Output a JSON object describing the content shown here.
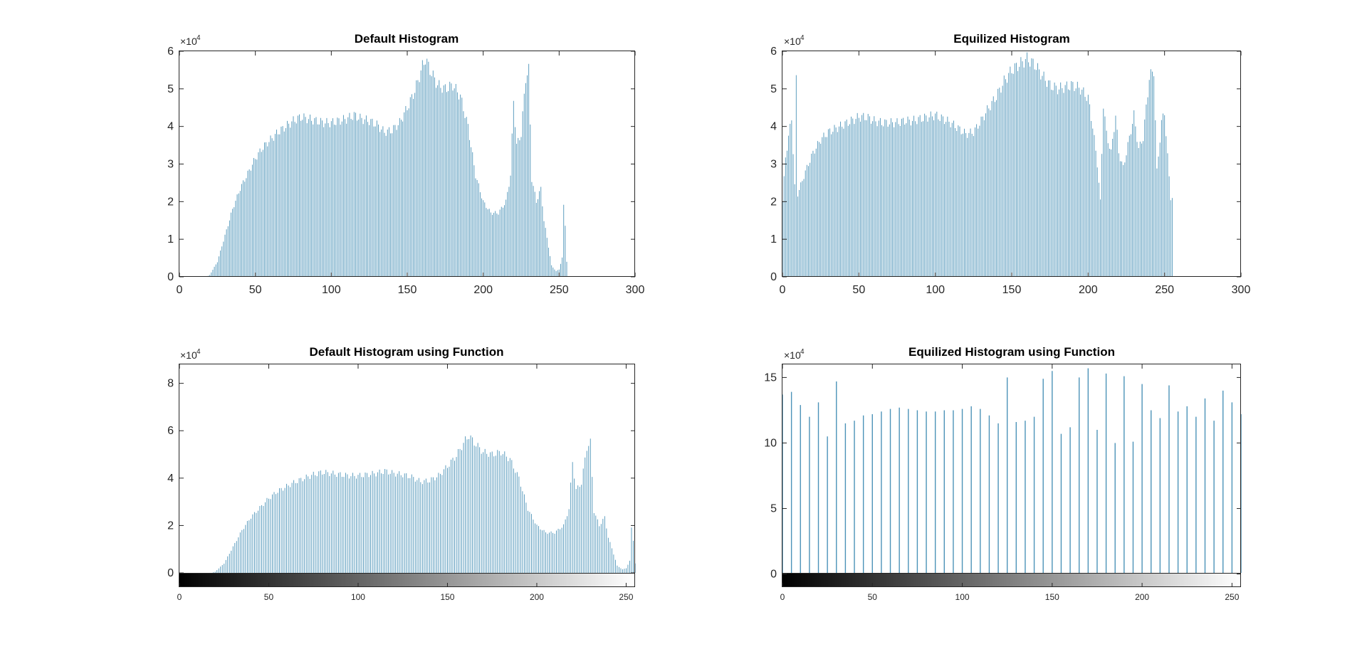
{
  "chart_data": [
    {
      "id": "p1",
      "type": "bar",
      "title": "Default Histogram",
      "xlim": [
        0,
        300
      ],
      "ylim": [
        0,
        60000
      ],
      "xticks": [
        "0",
        "50",
        "100",
        "150",
        "200",
        "250",
        "300"
      ],
      "yticks": [
        "0",
        "1",
        "2",
        "3",
        "4",
        "5",
        "6"
      ],
      "exponent_base": "×10",
      "exponent_power": "4",
      "bar_color": "#4c93b8",
      "colorbar": false,
      "bins_x_range": [
        0,
        255
      ],
      "envelope": [
        [
          0,
          0
        ],
        [
          18,
          0
        ],
        [
          20,
          500
        ],
        [
          25,
          4000
        ],
        [
          30,
          11000
        ],
        [
          35,
          18000
        ],
        [
          40,
          23500
        ],
        [
          45,
          27500
        ],
        [
          50,
          31500
        ],
        [
          55,
          34500
        ],
        [
          60,
          36500
        ],
        [
          65,
          38500
        ],
        [
          70,
          40000
        ],
        [
          75,
          41500
        ],
        [
          80,
          42500
        ],
        [
          85,
          42000
        ],
        [
          90,
          41500
        ],
        [
          95,
          41000
        ],
        [
          100,
          41000
        ],
        [
          105,
          41500
        ],
        [
          110,
          42000
        ],
        [
          115,
          43000
        ],
        [
          120,
          42000
        ],
        [
          125,
          41500
        ],
        [
          130,
          40500
        ],
        [
          135,
          38500
        ],
        [
          140,
          39000
        ],
        [
          145,
          41000
        ],
        [
          150,
          45000
        ],
        [
          155,
          49500
        ],
        [
          160,
          56000
        ],
        [
          162,
          58000
        ],
        [
          165,
          55000
        ],
        [
          170,
          51000
        ],
        [
          175,
          50000
        ],
        [
          180,
          51000
        ],
        [
          185,
          48000
        ],
        [
          190,
          40000
        ],
        [
          195,
          27000
        ],
        [
          200,
          20000
        ],
        [
          205,
          17000
        ],
        [
          210,
          17000
        ],
        [
          215,
          20000
        ],
        [
          218,
          27000
        ],
        [
          220,
          47000
        ],
        [
          222,
          35000
        ],
        [
          225,
          38000
        ],
        [
          228,
          53000
        ],
        [
          230,
          55000
        ],
        [
          232,
          26000
        ],
        [
          235,
          20000
        ],
        [
          238,
          23500
        ],
        [
          240,
          15000
        ],
        [
          243,
          8000
        ],
        [
          245,
          3000
        ],
        [
          248,
          1500
        ],
        [
          250,
          2000
        ],
        [
          252,
          5000
        ],
        [
          253,
          19000
        ],
        [
          254,
          14000
        ],
        [
          255,
          4000
        ]
      ]
    },
    {
      "id": "p2",
      "type": "bar",
      "title": "Equilized Histogram",
      "xlim": [
        0,
        300
      ],
      "ylim": [
        0,
        60000
      ],
      "xticks": [
        "0",
        "50",
        "100",
        "150",
        "200",
        "250",
        "300"
      ],
      "yticks": [
        "0",
        "1",
        "2",
        "3",
        "4",
        "5",
        "6"
      ],
      "exponent_base": "×10",
      "exponent_power": "4",
      "bar_color": "#4c93b8",
      "colorbar": false,
      "bins_x_range": [
        0,
        255
      ],
      "envelope": [
        [
          0,
          20000
        ],
        [
          2,
          32000
        ],
        [
          4,
          37000
        ],
        [
          6,
          42500
        ],
        [
          8,
          24000
        ],
        [
          9,
          53000
        ],
        [
          10,
          22000
        ],
        [
          15,
          28000
        ],
        [
          20,
          33000
        ],
        [
          25,
          36500
        ],
        [
          30,
          38500
        ],
        [
          35,
          39500
        ],
        [
          40,
          40500
        ],
        [
          45,
          41500
        ],
        [
          50,
          42500
        ],
        [
          55,
          42500
        ],
        [
          60,
          41500
        ],
        [
          65,
          41000
        ],
        [
          70,
          41000
        ],
        [
          75,
          41000
        ],
        [
          80,
          41500
        ],
        [
          85,
          41500
        ],
        [
          90,
          42000
        ],
        [
          95,
          42500
        ],
        [
          100,
          43000
        ],
        [
          105,
          42000
        ],
        [
          110,
          41000
        ],
        [
          115,
          39500
        ],
        [
          120,
          38000
        ],
        [
          125,
          38500
        ],
        [
          130,
          41500
        ],
        [
          135,
          45000
        ],
        [
          140,
          48000
        ],
        [
          145,
          52000
        ],
        [
          150,
          55000
        ],
        [
          155,
          56500
        ],
        [
          160,
          58000
        ],
        [
          165,
          56500
        ],
        [
          170,
          53500
        ],
        [
          175,
          51000
        ],
        [
          180,
          50000
        ],
        [
          185,
          50500
        ],
        [
          190,
          51000
        ],
        [
          195,
          50000
        ],
        [
          200,
          47500
        ],
        [
          203,
          40000
        ],
        [
          206,
          30000
        ],
        [
          208,
          20000
        ],
        [
          210,
          46000
        ],
        [
          212,
          38000
        ],
        [
          215,
          33000
        ],
        [
          218,
          43000
        ],
        [
          220,
          33000
        ],
        [
          223,
          29000
        ],
        [
          226,
          35000
        ],
        [
          230,
          43000
        ],
        [
          233,
          34000
        ],
        [
          236,
          37000
        ],
        [
          240,
          53000
        ],
        [
          243,
          55000
        ],
        [
          245,
          28000
        ],
        [
          248,
          41000
        ],
        [
          250,
          44000
        ],
        [
          252,
          32000
        ],
        [
          254,
          21000
        ],
        [
          255,
          21000
        ]
      ]
    },
    {
      "id": "p3",
      "type": "bar",
      "title": "Default Histogram using Function",
      "xlim": [
        0,
        255
      ],
      "ylim": [
        -6000,
        88000
      ],
      "xticks": [
        "0",
        "50",
        "100",
        "150",
        "200",
        "250"
      ],
      "yticks": [
        "0",
        "2",
        "4",
        "6",
        "8"
      ],
      "exponent_base": "×10",
      "exponent_power": "4",
      "bar_color": "#4c93b8",
      "colorbar": true,
      "bins_x_range": [
        0,
        255
      ],
      "envelope": [
        [
          0,
          0
        ],
        [
          18,
          0
        ],
        [
          20,
          500
        ],
        [
          25,
          4000
        ],
        [
          30,
          11000
        ],
        [
          35,
          18000
        ],
        [
          40,
          23500
        ],
        [
          45,
          27500
        ],
        [
          50,
          31500
        ],
        [
          55,
          34500
        ],
        [
          60,
          36500
        ],
        [
          65,
          38500
        ],
        [
          70,
          40000
        ],
        [
          75,
          41500
        ],
        [
          80,
          42500
        ],
        [
          85,
          42000
        ],
        [
          90,
          41500
        ],
        [
          95,
          41000
        ],
        [
          100,
          41000
        ],
        [
          105,
          41500
        ],
        [
          110,
          42000
        ],
        [
          115,
          43000
        ],
        [
          120,
          42000
        ],
        [
          125,
          41500
        ],
        [
          130,
          40500
        ],
        [
          135,
          38500
        ],
        [
          140,
          39000
        ],
        [
          145,
          41000
        ],
        [
          150,
          45000
        ],
        [
          155,
          49500
        ],
        [
          160,
          56000
        ],
        [
          162,
          58000
        ],
        [
          165,
          55000
        ],
        [
          170,
          51000
        ],
        [
          175,
          50000
        ],
        [
          180,
          51000
        ],
        [
          185,
          48000
        ],
        [
          190,
          40000
        ],
        [
          195,
          27000
        ],
        [
          200,
          20000
        ],
        [
          205,
          17000
        ],
        [
          210,
          17000
        ],
        [
          215,
          20000
        ],
        [
          218,
          27000
        ],
        [
          220,
          47000
        ],
        [
          222,
          35000
        ],
        [
          225,
          38000
        ],
        [
          228,
          53000
        ],
        [
          230,
          55000
        ],
        [
          232,
          26000
        ],
        [
          235,
          20000
        ],
        [
          238,
          23500
        ],
        [
          240,
          15000
        ],
        [
          243,
          8000
        ],
        [
          245,
          3000
        ],
        [
          248,
          1500
        ],
        [
          250,
          2000
        ],
        [
          252,
          5000
        ],
        [
          253,
          19000
        ],
        [
          254,
          14000
        ],
        [
          255,
          4000
        ]
      ]
    },
    {
      "id": "p4",
      "type": "bar",
      "title": "Equilized Histogram using Function",
      "xlim": [
        0,
        255
      ],
      "ylim": [
        -10000,
        160000
      ],
      "xticks": [
        "0",
        "50",
        "100",
        "150",
        "200",
        "250"
      ],
      "yticks": [
        "0",
        "5",
        "10",
        "15"
      ],
      "exponent_base": "×10",
      "exponent_power": "4",
      "bar_color": "#4c93b8",
      "colorbar": true,
      "bars": [
        [
          0,
          137000
        ],
        [
          5,
          139000
        ],
        [
          10,
          129000
        ],
        [
          15,
          120000
        ],
        [
          20,
          131000
        ],
        [
          25,
          105000
        ],
        [
          30,
          147000
        ],
        [
          35,
          115000
        ],
        [
          40,
          117000
        ],
        [
          45,
          121000
        ],
        [
          50,
          122000
        ],
        [
          55,
          124000
        ],
        [
          60,
          126000
        ],
        [
          65,
          127000
        ],
        [
          70,
          126000
        ],
        [
          75,
          125000
        ],
        [
          80,
          124000
        ],
        [
          85,
          124000
        ],
        [
          90,
          125000
        ],
        [
          95,
          125000
        ],
        [
          100,
          126000
        ],
        [
          105,
          128000
        ],
        [
          110,
          126000
        ],
        [
          115,
          121000
        ],
        [
          120,
          115000
        ],
        [
          125,
          150000
        ],
        [
          130,
          116000
        ],
        [
          135,
          117000
        ],
        [
          140,
          120000
        ],
        [
          145,
          149000
        ],
        [
          150,
          155000
        ],
        [
          155,
          107000
        ],
        [
          160,
          112000
        ],
        [
          165,
          150000
        ],
        [
          170,
          157000
        ],
        [
          175,
          110000
        ],
        [
          180,
          153000
        ],
        [
          185,
          100000
        ],
        [
          190,
          151000
        ],
        [
          195,
          101000
        ],
        [
          200,
          145000
        ],
        [
          205,
          125000
        ],
        [
          210,
          119000
        ],
        [
          215,
          144000
        ],
        [
          220,
          124000
        ],
        [
          225,
          128000
        ],
        [
          230,
          120000
        ],
        [
          235,
          134000
        ],
        [
          240,
          117000
        ],
        [
          245,
          140000
        ],
        [
          250,
          131000
        ],
        [
          255,
          122000
        ]
      ]
    }
  ]
}
